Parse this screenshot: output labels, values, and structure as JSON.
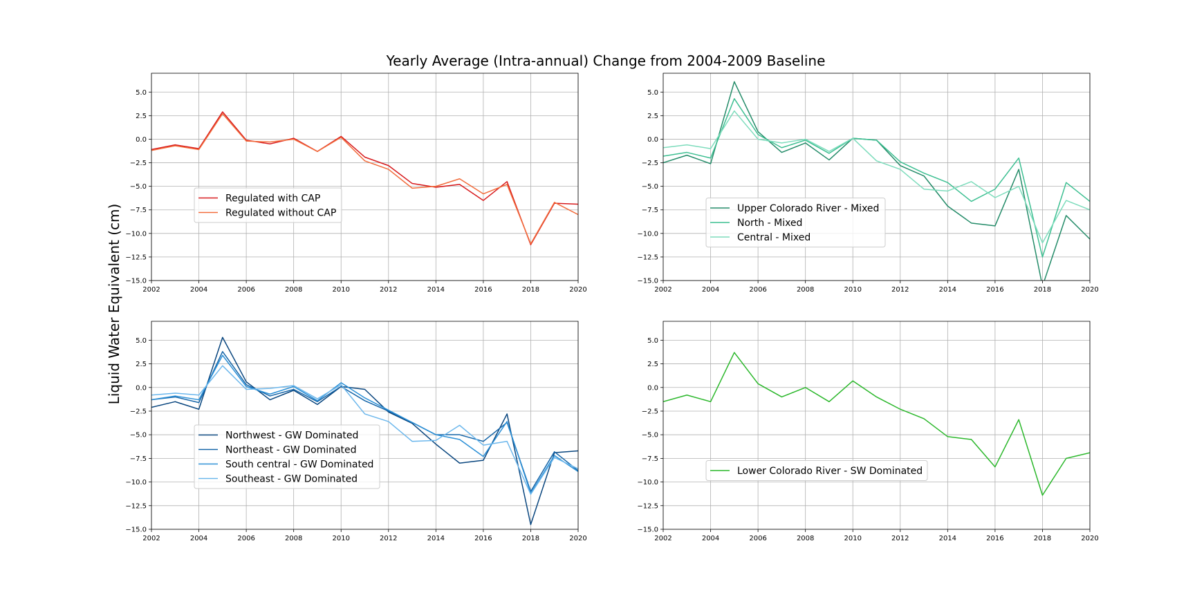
{
  "figure": {
    "title": "Yearly Average (Intra-annual) Change from 2004-2009 Baseline",
    "ylabel": "Liquid Water Equivalent (cm)"
  },
  "chart_data": [
    {
      "type": "line",
      "xlim": [
        2002,
        2020
      ],
      "ylim": [
        -15,
        7
      ],
      "xticks": [
        "2002",
        "2004",
        "2006",
        "2008",
        "2010",
        "2012",
        "2014",
        "2016",
        "2018",
        "2020"
      ],
      "yticks": [
        "5.0",
        "2.5",
        "0.0",
        "−2.5",
        "−5.0",
        "−7.5",
        "−10.0",
        "−12.5",
        "−15.0"
      ],
      "grid": true,
      "legend_position": "lower-left",
      "x": [
        2002,
        2003,
        2004,
        2005,
        2006,
        2007,
        2008,
        2009,
        2010,
        2011,
        2012,
        2013,
        2014,
        2015,
        2016,
        2017,
        2018,
        2019,
        2020
      ],
      "series": [
        {
          "name": "Regulated with CAP",
          "color": "#d7191c",
          "values": [
            -1.1,
            -0.6,
            -1.0,
            2.9,
            -0.1,
            -0.5,
            0.1,
            -1.3,
            0.3,
            -1.9,
            -2.8,
            -4.7,
            -5.1,
            -4.8,
            -6.5,
            -4.5,
            -11.2,
            -6.8,
            -6.9
          ]
        },
        {
          "name": "Regulated without CAP",
          "color": "#f26b3a",
          "values": [
            -1.2,
            -0.7,
            -1.1,
            2.7,
            -0.2,
            -0.3,
            0.0,
            -1.3,
            0.2,
            -2.3,
            -3.2,
            -5.2,
            -5.0,
            -4.2,
            -5.8,
            -4.8,
            -11.1,
            -6.7,
            -8.0
          ]
        }
      ]
    },
    {
      "type": "line",
      "xlim": [
        2002,
        2020
      ],
      "ylim": [
        -15,
        7
      ],
      "xticks": [
        "2002",
        "2004",
        "2006",
        "2008",
        "2010",
        "2012",
        "2014",
        "2016",
        "2018",
        "2020"
      ],
      "yticks": [
        "5.0",
        "2.5",
        "0.0",
        "−2.5",
        "−5.0",
        "−7.5",
        "−10.0",
        "−12.5",
        "−15.0"
      ],
      "grid": true,
      "legend_position": "lower-left",
      "x": [
        2002,
        2003,
        2004,
        2005,
        2006,
        2007,
        2008,
        2009,
        2010,
        2011,
        2012,
        2013,
        2014,
        2015,
        2016,
        2017,
        2018,
        2019,
        2020
      ],
      "series": [
        {
          "name": "Upper Colorado River - Mixed",
          "color": "#238b68",
          "values": [
            -2.5,
            -1.7,
            -2.6,
            6.1,
            0.8,
            -1.4,
            -0.4,
            -2.2,
            0.1,
            -0.1,
            -2.8,
            -3.9,
            -7.1,
            -8.9,
            -9.2,
            -3.2,
            -15.6,
            -8.1,
            -10.6
          ]
        },
        {
          "name": "North - Mixed",
          "color": "#3cbf91",
          "values": [
            -1.8,
            -1.4,
            -2.0,
            4.3,
            0.5,
            -0.9,
            -0.1,
            -1.5,
            0.1,
            -0.1,
            -2.4,
            -3.6,
            -4.6,
            -6.6,
            -5.3,
            -2.0,
            -12.5,
            -4.6,
            -6.6
          ]
        },
        {
          "name": "Central - Mixed",
          "color": "#7ddcbc",
          "values": [
            -0.9,
            -0.6,
            -1.0,
            3.0,
            0.0,
            -0.4,
            0.0,
            -1.3,
            0.1,
            -2.3,
            -3.2,
            -5.3,
            -5.5,
            -4.5,
            -6.2,
            -5.0,
            -11.0,
            -6.5,
            -7.5
          ]
        }
      ]
    },
    {
      "type": "line",
      "xlim": [
        2002,
        2020
      ],
      "ylim": [
        -15,
        7
      ],
      "xticks": [
        "2002",
        "2004",
        "2006",
        "2008",
        "2010",
        "2012",
        "2014",
        "2016",
        "2018",
        "2020"
      ],
      "yticks": [
        "5.0",
        "2.5",
        "0.0",
        "−2.5",
        "−5.0",
        "−7.5",
        "−10.0",
        "−12.5",
        "−15.0"
      ],
      "grid": true,
      "legend_position": "lower-left",
      "x": [
        2002,
        2003,
        2004,
        2005,
        2006,
        2007,
        2008,
        2009,
        2010,
        2011,
        2012,
        2013,
        2014,
        2015,
        2016,
        2017,
        2018,
        2019,
        2020
      ],
      "series": [
        {
          "name": "Northwest - GW Dominated",
          "color": "#08457e",
          "values": [
            -2.1,
            -1.5,
            -2.3,
            5.3,
            0.6,
            -1.3,
            -0.3,
            -1.8,
            0.1,
            -0.2,
            -2.6,
            -3.8,
            -6.0,
            -8.0,
            -7.7,
            -2.8,
            -14.5,
            -6.9,
            -6.7
          ]
        },
        {
          "name": "Northeast - GW Dominated",
          "color": "#1565a8",
          "values": [
            -1.3,
            -1.0,
            -1.6,
            3.8,
            0.3,
            -0.9,
            -0.2,
            -1.5,
            0.1,
            -1.4,
            -2.5,
            -3.7,
            -5.0,
            -5.0,
            -5.7,
            -3.7,
            -11.0,
            -6.8,
            -8.8
          ]
        },
        {
          "name": "South central - GW Dominated",
          "color": "#2a8fd6",
          "values": [
            -1.3,
            -0.9,
            -1.3,
            3.4,
            0.1,
            -0.7,
            0.1,
            -1.4,
            0.5,
            -1.1,
            -2.4,
            -3.7,
            -5.0,
            -5.5,
            -7.3,
            -3.6,
            -11.2,
            -7.2,
            -8.9
          ]
        },
        {
          "name": "Southeast - GW Dominated",
          "color": "#6cb7ec",
          "values": [
            -0.8,
            -0.6,
            -0.8,
            2.3,
            -0.2,
            -0.1,
            0.2,
            -1.2,
            0.3,
            -2.8,
            -3.6,
            -5.7,
            -5.6,
            -4.0,
            -6.1,
            -5.7,
            -11.3,
            -7.4,
            -8.6
          ]
        }
      ]
    },
    {
      "type": "line",
      "xlim": [
        2002,
        2020
      ],
      "ylim": [
        -15,
        7
      ],
      "xticks": [
        "2002",
        "2004",
        "2006",
        "2008",
        "2010",
        "2012",
        "2014",
        "2016",
        "2018",
        "2020"
      ],
      "yticks": [
        "5.0",
        "2.5",
        "0.0",
        "−2.5",
        "−5.0",
        "−7.5",
        "−10.0",
        "−12.5",
        "−15.0"
      ],
      "grid": true,
      "legend_position": "lower-left",
      "x": [
        2002,
        2003,
        2004,
        2005,
        2006,
        2007,
        2008,
        2009,
        2010,
        2011,
        2012,
        2013,
        2014,
        2015,
        2016,
        2017,
        2018,
        2019,
        2020
      ],
      "series": [
        {
          "name": "Lower Colorado River - SW Dominated",
          "color": "#2ab72a",
          "values": [
            -1.5,
            -0.8,
            -1.5,
            3.7,
            0.4,
            -1.0,
            0.0,
            -1.5,
            0.7,
            -1.0,
            -2.3,
            -3.3,
            -5.2,
            -5.5,
            -8.4,
            -3.4,
            -11.4,
            -7.5,
            -6.9
          ]
        }
      ]
    }
  ]
}
